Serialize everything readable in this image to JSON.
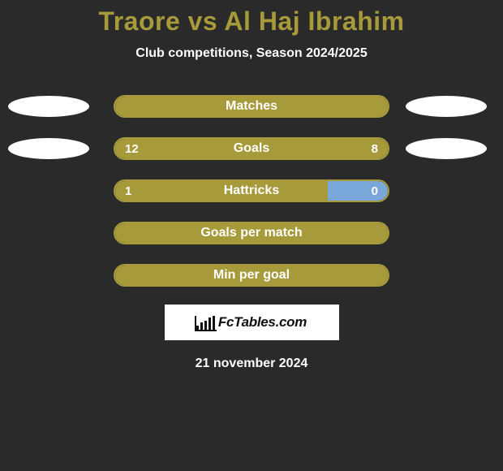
{
  "title": {
    "text": "Traore vs Al Haj Ibrahim",
    "color": "#a79a3a",
    "fontsize": 32
  },
  "subtitle": "Club competitions, Season 2024/2025",
  "colors": {
    "barBorder": "#a79a3a",
    "leftFill": "#a79a3a",
    "rightFill": "#a79a3a",
    "background": "#2a2a2a",
    "ellipse": "#ffffff",
    "text": "#ffffff"
  },
  "rows": [
    {
      "label": "Matches",
      "leftValue": null,
      "rightValue": null,
      "leftPct": 100,
      "rightPct": 0,
      "leftFill": "#a79a3a",
      "rightFill": "#a79a3a",
      "showLeftEllipse": true,
      "showRightEllipse": true
    },
    {
      "label": "Goals",
      "leftValue": "12",
      "rightValue": "8",
      "leftPct": 60,
      "rightPct": 40,
      "leftFill": "#a79a3a",
      "rightFill": "#a79a3a",
      "showLeftEllipse": true,
      "showRightEllipse": true
    },
    {
      "label": "Hattricks",
      "leftValue": "1",
      "rightValue": "0",
      "leftPct": 78,
      "rightPct": 22,
      "leftFill": "#a79a3a",
      "rightFill": "#7aa7d9",
      "showLeftEllipse": false,
      "showRightEllipse": false
    },
    {
      "label": "Goals per match",
      "leftValue": null,
      "rightValue": null,
      "leftPct": 100,
      "rightPct": 0,
      "leftFill": "#a79a3a",
      "rightFill": "#a79a3a",
      "showLeftEllipse": false,
      "showRightEllipse": false
    },
    {
      "label": "Min per goal",
      "leftValue": null,
      "rightValue": null,
      "leftPct": 100,
      "rightPct": 0,
      "leftFill": "#a79a3a",
      "rightFill": "#a79a3a",
      "showLeftEllipse": false,
      "showRightEllipse": false
    }
  ],
  "logo": {
    "text": "FcTables.com"
  },
  "date": "21 november 2024"
}
